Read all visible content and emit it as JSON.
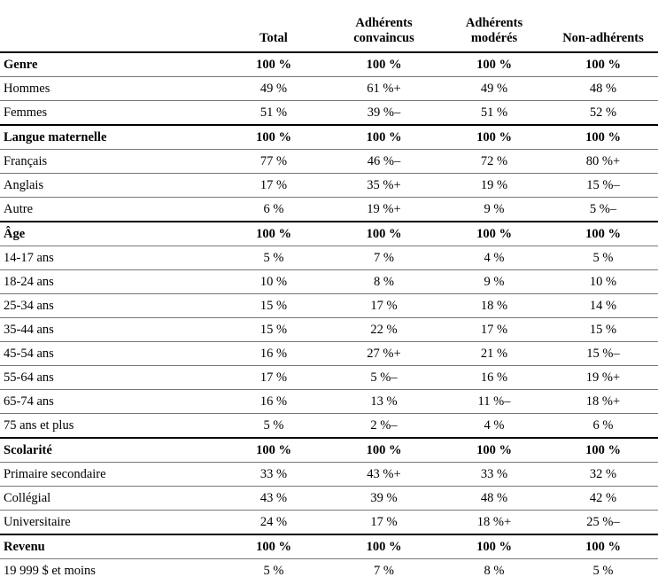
{
  "headers": {
    "label": "",
    "total": "Total",
    "convaincus_l1": "Adhérents",
    "convaincus_l2": "convaincus",
    "moderes_l1": "Adhérents",
    "moderes_l2": "modérés",
    "non": "Non-adhérents"
  },
  "rows": [
    {
      "type": "section",
      "label": "Genre",
      "total": "100 %",
      "convaincus": "100 %",
      "moderes": "100 %",
      "non": "100 %"
    },
    {
      "type": "item",
      "label": "Hommes",
      "total": "49 %",
      "convaincus": "61 %+",
      "moderes": "49 %",
      "non": "48 %"
    },
    {
      "type": "item",
      "label": "Femmes",
      "total": "51 %",
      "convaincus": "39 %–",
      "moderes": "51 %",
      "non": "52 %"
    },
    {
      "type": "section",
      "label": "Langue maternelle",
      "total": "100 %",
      "convaincus": "100 %",
      "moderes": "100 %",
      "non": "100 %"
    },
    {
      "type": "item",
      "label": "Français",
      "total": "77 %",
      "convaincus": "46 %–",
      "moderes": "72 %",
      "non": "80 %+"
    },
    {
      "type": "item",
      "label": "Anglais",
      "total": "17 %",
      "convaincus": "35 %+",
      "moderes": "19 %",
      "non": "15 %–"
    },
    {
      "type": "item",
      "label": "Autre",
      "total": "6 %",
      "convaincus": "19 %+",
      "moderes": "9 %",
      "non": "5 %–"
    },
    {
      "type": "section",
      "label": "Âge",
      "total": "100 %",
      "convaincus": "100 %",
      "moderes": "100 %",
      "non": "100 %"
    },
    {
      "type": "item",
      "label": "14-17 ans",
      "total": "5 %",
      "convaincus": "7 %",
      "moderes": "4 %",
      "non": "5 %"
    },
    {
      "type": "item",
      "label": "18-24 ans",
      "total": "10 %",
      "convaincus": "8 %",
      "moderes": "9 %",
      "non": "10 %"
    },
    {
      "type": "item",
      "label": "25-34 ans",
      "total": "15 %",
      "convaincus": "17 %",
      "moderes": "18 %",
      "non": "14 %"
    },
    {
      "type": "item",
      "label": "35-44 ans",
      "total": "15 %",
      "convaincus": "22 %",
      "moderes": "17 %",
      "non": "15 %"
    },
    {
      "type": "item",
      "label": "45-54 ans",
      "total": "16 %",
      "convaincus": "27 %+",
      "moderes": "21 %",
      "non": "15 %–"
    },
    {
      "type": "item",
      "label": "55-64 ans",
      "total": "17 %",
      "convaincus": "5 %–",
      "moderes": "16 %",
      "non": "19 %+"
    },
    {
      "type": "item",
      "label": "65-74 ans",
      "total": "16 %",
      "convaincus": "13 %",
      "moderes": "11 %–",
      "non": "18 %+"
    },
    {
      "type": "item",
      "label": "75 ans et plus",
      "total": "5 %",
      "convaincus": "2 %–",
      "moderes": "4 %",
      "non": "6 %"
    },
    {
      "type": "section",
      "label": "Scolarité",
      "total": "100 %",
      "convaincus": "100 %",
      "moderes": "100 %",
      "non": "100 %"
    },
    {
      "type": "item",
      "label": "Primaire secondaire",
      "total": "33 %",
      "convaincus": "43 %+",
      "moderes": "33 %",
      "non": "32 %"
    },
    {
      "type": "item",
      "label": "Collégial",
      "total": "43 %",
      "convaincus": "39 %",
      "moderes": "48 %",
      "non": "42 %"
    },
    {
      "type": "item",
      "label": "Universitaire",
      "total": "24 %",
      "convaincus": "17 %",
      "moderes": "18 %+",
      "non": "25 %–"
    },
    {
      "type": "section",
      "label": "Revenu",
      "total": "100 %",
      "convaincus": "100 %",
      "moderes": "100 %",
      "non": "100 %"
    },
    {
      "type": "item",
      "label": "19 999 $ et moins",
      "total": "5 %",
      "convaincus": "7 %",
      "moderes": "8 %",
      "non": "5 %"
    }
  ]
}
